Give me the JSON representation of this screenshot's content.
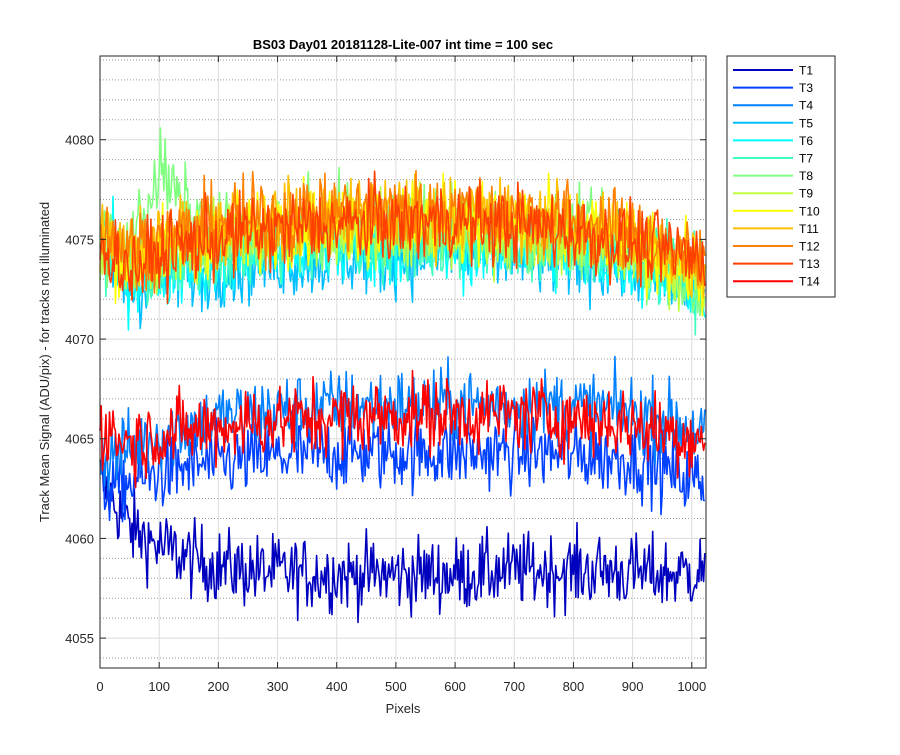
{
  "chart_data": {
    "type": "line",
    "title": "BS03 Day01 20181128-Lite-007 int time = 100 sec",
    "xlabel": "Pixels",
    "ylabel": "Track Mean Signal (ADU/pix) - for tracks not illuminated",
    "xlim": [
      0,
      1024
    ],
    "ylim": [
      4053.5,
      4084.2
    ],
    "xticks": [
      0,
      100,
      200,
      300,
      400,
      500,
      600,
      700,
      800,
      900,
      1000
    ],
    "yticks": [
      4055,
      4060,
      4065,
      4070,
      4075,
      4080
    ],
    "grid": true,
    "minor_grid": true,
    "legend_position": "outside-top-right",
    "x": [
      0,
      50,
      100,
      150,
      200,
      250,
      300,
      350,
      400,
      450,
      500,
      550,
      600,
      650,
      700,
      750,
      800,
      850,
      900,
      950,
      1000,
      1023
    ],
    "series": [
      {
        "name": "T1",
        "color": "#0000bf",
        "values": [
          4063,
          4060.5,
          4059.6,
          4059,
          4058.6,
          4058.4,
          4058.3,
          4058.2,
          4058.2,
          4058.2,
          4058.2,
          4058.2,
          4058.2,
          4058.3,
          4058.4,
          4058.4,
          4058.4,
          4058.4,
          4058.3,
          4058.2,
          4058.3,
          4058.5
        ]
      },
      {
        "name": "T3",
        "color": "#0040ff",
        "values": [
          4062.5,
          4062.8,
          4063.3,
          4063.6,
          4063.8,
          4064,
          4064.1,
          4064.2,
          4064.3,
          4064.3,
          4064.3,
          4064.3,
          4064.3,
          4064.3,
          4064.3,
          4064.3,
          4064.2,
          4064.1,
          4064,
          4063.5,
          4063,
          4062.8
        ]
      },
      {
        "name": "T4",
        "color": "#0080ff",
        "values": [
          4064,
          4064.5,
          4065.2,
          4065.6,
          4066,
          4066.2,
          4066.4,
          4066.5,
          4066.6,
          4066.7,
          4066.7,
          4066.7,
          4066.7,
          4066.7,
          4066.7,
          4066.7,
          4066.6,
          4066.5,
          4066.3,
          4066,
          4065.5,
          4065.2
        ]
      },
      {
        "name": "T5",
        "color": "#00bfff",
        "values": [
          4074.5,
          4072.5,
          4073,
          4073.4,
          4073.6,
          4073.8,
          4074,
          4074,
          4074.1,
          4074.2,
          4074.2,
          4074.3,
          4074.3,
          4074.3,
          4074.2,
          4074.1,
          4074,
          4073.9,
          4073.6,
          4073.2,
          4072.8,
          4072.5
        ]
      },
      {
        "name": "T6",
        "color": "#00ffff",
        "values": [
          4075.5,
          4073,
          4073.4,
          4073.8,
          4074,
          4074.2,
          4074.3,
          4074.4,
          4074.5,
          4074.5,
          4074.6,
          4074.6,
          4074.6,
          4074.6,
          4074.5,
          4074.4,
          4074.3,
          4074.1,
          4073.8,
          4073.4,
          4073,
          4072.8
        ]
      },
      {
        "name": "T7",
        "color": "#40ffbf",
        "values": [
          4074,
          4073.2,
          4073.6,
          4074,
          4074.3,
          4074.5,
          4074.6,
          4074.7,
          4074.8,
          4074.8,
          4074.9,
          4074.9,
          4074.9,
          4074.9,
          4074.8,
          4074.7,
          4074.6,
          4074.4,
          4074.1,
          4073.7,
          4073.2,
          4073
        ]
      },
      {
        "name": "T8",
        "color": "#80ff80",
        "values": [
          4075,
          4074.5,
          4078.5,
          4076.2,
          4075.2,
          4075.4,
          4075.5,
          4075.6,
          4075.7,
          4075.7,
          4075.8,
          4075.8,
          4075.8,
          4075.7,
          4075.6,
          4075.5,
          4075.3,
          4075,
          4074.6,
          4074,
          4073.2,
          4072.8
        ]
      },
      {
        "name": "T9",
        "color": "#bfff40",
        "values": [
          4074.5,
          4073.6,
          4074.2,
          4074.6,
          4074.9,
          4075.1,
          4075.2,
          4075.3,
          4075.4,
          4075.4,
          4075.5,
          4075.5,
          4075.5,
          4075.4,
          4075.3,
          4075.2,
          4075,
          4074.7,
          4074.3,
          4073.8,
          4073,
          4072.6
        ]
      },
      {
        "name": "T10",
        "color": "#ffff00",
        "values": [
          4075,
          4074,
          4074.6,
          4075,
          4075.3,
          4075.5,
          4075.7,
          4075.8,
          4075.9,
          4075.9,
          4076,
          4076,
          4076,
          4075.9,
          4075.8,
          4075.7,
          4075.5,
          4075.2,
          4074.8,
          4074.3,
          4073.6,
          4073.2
        ]
      },
      {
        "name": "T11",
        "color": "#ffbf00",
        "values": [
          4075.2,
          4074.2,
          4074.8,
          4075.2,
          4075.5,
          4075.7,
          4075.9,
          4076,
          4076.1,
          4076.1,
          4076.2,
          4076.2,
          4076.2,
          4076.1,
          4076,
          4075.9,
          4075.7,
          4075.4,
          4075,
          4074.5,
          4073.8,
          4073.4
        ]
      },
      {
        "name": "T12",
        "color": "#ff8000",
        "values": [
          4075.5,
          4074.5,
          4075,
          4075.4,
          4075.7,
          4076,
          4076.1,
          4076.2,
          4076.3,
          4076.4,
          4076.4,
          4076.4,
          4076.4,
          4076.3,
          4076.2,
          4076.1,
          4075.9,
          4075.6,
          4075.2,
          4074.7,
          4074,
          4073.6
        ]
      },
      {
        "name": "T13",
        "color": "#ff4000",
        "values": [
          4074.8,
          4073.5,
          4074.2,
          4074.7,
          4075,
          4075.3,
          4075.5,
          4075.6,
          4075.7,
          4075.8,
          4075.8,
          4075.9,
          4075.9,
          4075.8,
          4075.7,
          4075.6,
          4075.4,
          4075.1,
          4074.8,
          4074.4,
          4074.1,
          4074
        ]
      },
      {
        "name": "T14",
        "color": "#ff0000",
        "values": [
          4065.5,
          4064.8,
          4065.2,
          4065.4,
          4065.6,
          4065.8,
          4065.9,
          4066,
          4066.1,
          4066.1,
          4066.2,
          4066.2,
          4066.2,
          4066.2,
          4066.2,
          4066.1,
          4066,
          4065.9,
          4065.7,
          4065.4,
          4065.1,
          4065
        ]
      }
    ]
  }
}
